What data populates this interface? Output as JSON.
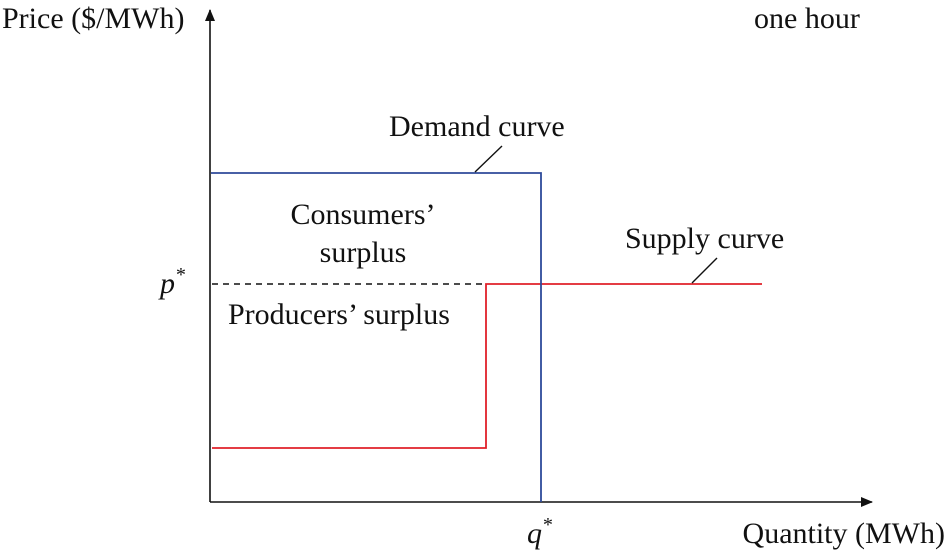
{
  "axes": {
    "y_label": "Price ($/MWh)",
    "x_label": "Quantity (MWh)",
    "period_label": "one hour"
  },
  "equilibrium": {
    "price_symbol": "p",
    "quantity_symbol": "q",
    "superscript": "*"
  },
  "curves": {
    "demand_label": "Demand curve",
    "supply_label": "Supply curve",
    "demand_color": "#2e4a9a",
    "supply_color": "#e0202a"
  },
  "regions": {
    "consumers_line1": "Consumers’",
    "consumers_line2": "surplus",
    "producers": "Producers’ surplus"
  }
}
